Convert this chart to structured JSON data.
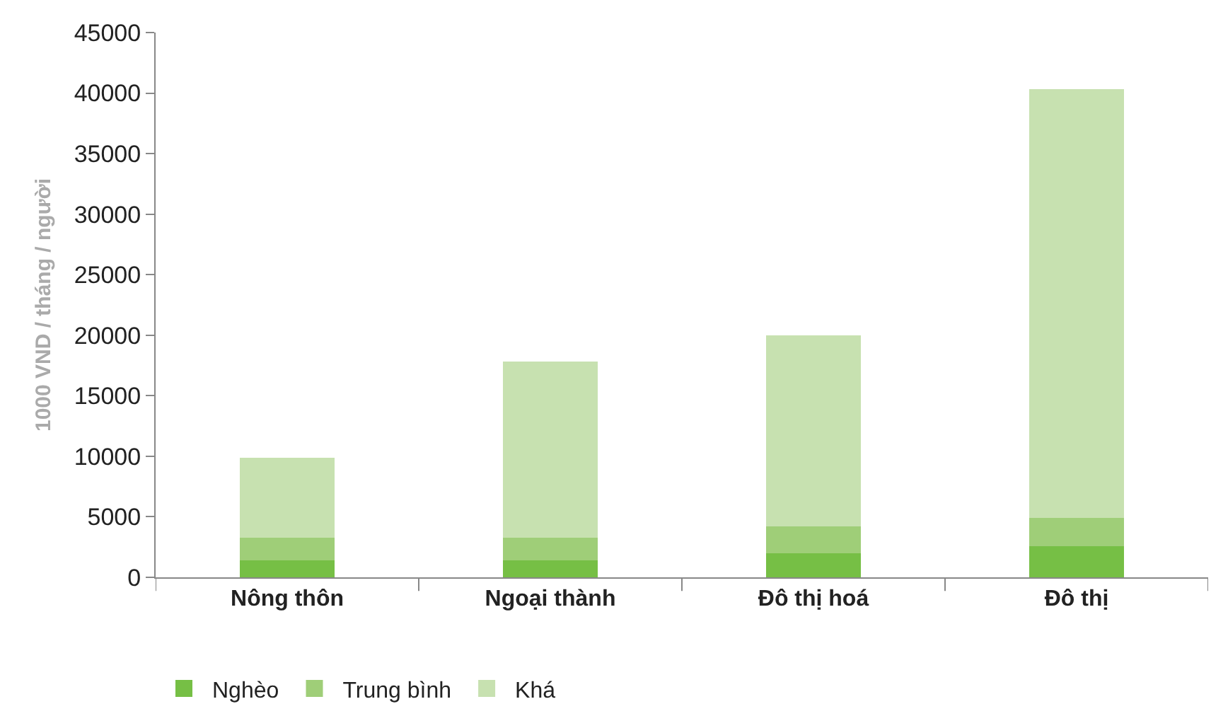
{
  "chart_data": {
    "type": "bar",
    "stacked": true,
    "ylabel": "1000 VND / tháng / người",
    "categories": [
      "Nông thôn",
      "Ngoại thành",
      "Đô thị hoá",
      "Đô thị"
    ],
    "series": [
      {
        "name": "Nghèo",
        "color": "#76bf45",
        "values": [
          1400,
          1400,
          2000,
          2600
        ]
      },
      {
        "name": "Trung bình",
        "color": "#9fce78",
        "values": [
          1900,
          1900,
          2200,
          2300
        ]
      },
      {
        "name": "Khá",
        "color": "#c7e1b0",
        "values": [
          6600,
          14500,
          15800,
          35400
        ]
      }
    ],
    "ylim": [
      0,
      45000
    ],
    "yticks": [
      0,
      5000,
      10000,
      15000,
      20000,
      25000,
      30000,
      35000,
      40000,
      45000
    ],
    "legend": "bottom"
  }
}
